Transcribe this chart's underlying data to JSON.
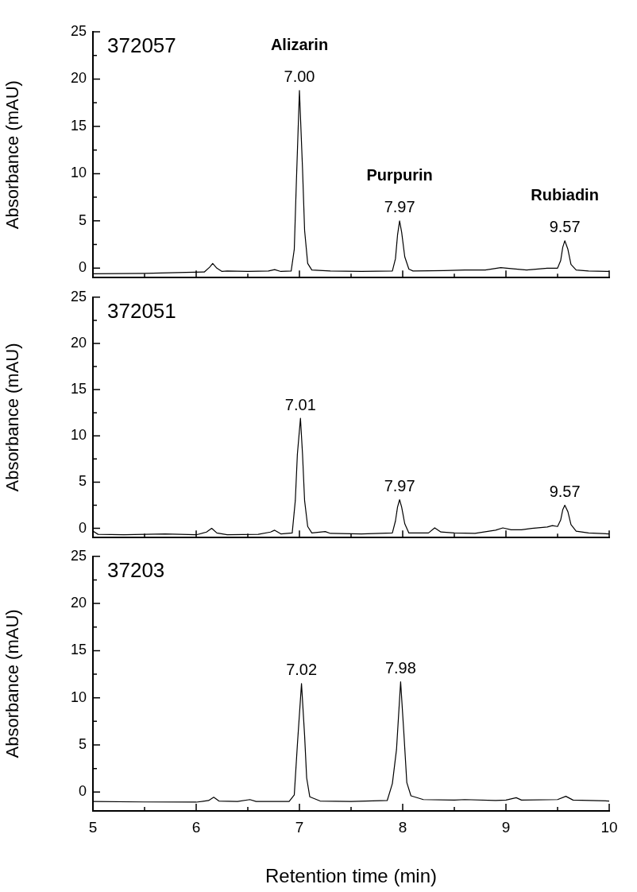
{
  "chart_data": [
    {
      "type": "line",
      "title": "372057",
      "ylabel": "Absorbance (mAU)",
      "tick_labels": "y",
      "xlim": [
        5,
        10
      ],
      "xticks": [
        5,
        {
          "value": 5.5,
          "label": null
        },
        6,
        {
          "value": 6.5,
          "label": null
        },
        7,
        {
          "value": 7.5,
          "label": null
        },
        8,
        {
          "value": 8.5,
          "label": null
        },
        9,
        {
          "value": 9.5,
          "label": null
        },
        10
      ],
      "ylim": [
        -1,
        25
      ],
      "yticks": [
        0,
        {
          "value": 2.5,
          "label": null
        },
        5,
        {
          "value": 7.5,
          "label": null
        },
        10,
        {
          "value": 12.5,
          "label": null
        },
        15,
        {
          "value": 17.5,
          "label": null
        },
        20,
        {
          "value": 22.5,
          "label": null
        },
        25
      ],
      "x": [
        5.0,
        5.5,
        5.9,
        6.08,
        6.13,
        6.16,
        6.2,
        6.25,
        6.3,
        6.5,
        6.7,
        6.76,
        6.82,
        6.92,
        6.95,
        6.97,
        7.0,
        7.03,
        7.05,
        7.08,
        7.12,
        7.3,
        7.6,
        7.9,
        7.93,
        7.95,
        7.97,
        7.99,
        8.02,
        8.06,
        8.1,
        8.4,
        8.6,
        8.8,
        8.95,
        9.05,
        9.2,
        9.4,
        9.5,
        9.53,
        9.55,
        9.57,
        9.6,
        9.63,
        9.68,
        9.8,
        10.0
      ],
      "series": [
        {
          "color": "#000000",
          "values": [
            -0.6,
            -0.55,
            -0.45,
            -0.4,
            0.1,
            0.5,
            0.0,
            -0.35,
            -0.3,
            -0.35,
            -0.3,
            -0.15,
            -0.35,
            -0.3,
            2.0,
            9.0,
            18.8,
            10.5,
            4.0,
            0.5,
            -0.2,
            -0.3,
            -0.35,
            -0.3,
            1.0,
            3.5,
            5.0,
            3.8,
            1.2,
            -0.1,
            -0.3,
            -0.25,
            -0.2,
            -0.2,
            0.05,
            -0.05,
            -0.2,
            0.0,
            0.0,
            0.8,
            2.2,
            2.9,
            2.0,
            0.4,
            -0.2,
            -0.3,
            -0.35
          ]
        }
      ],
      "annotations": [
        {
          "text": "7.00",
          "x": 7.0,
          "y": 18.8
        },
        {
          "text": "Alizarin",
          "x": 7.0,
          "y": 18.8
        },
        {
          "text": "7.97",
          "x": 7.97,
          "y": 5.0
        },
        {
          "text": "Purpurin",
          "x": 7.97,
          "y": 5.0
        },
        {
          "text": "9.57",
          "x": 9.57,
          "y": 2.9
        },
        {
          "text": "Rubiadin",
          "x": 9.57,
          "y": 2.9
        }
      ]
    },
    {
      "type": "line",
      "title": "372051",
      "ylabel": "Absorbance (mAU)",
      "tick_labels": "y",
      "xlim": [
        5,
        10
      ],
      "xticks": [
        5,
        {
          "value": 5.5,
          "label": null
        },
        6,
        {
          "value": 6.5,
          "label": null
        },
        7,
        {
          "value": 7.5,
          "label": null
        },
        8,
        {
          "value": 8.5,
          "label": null
        },
        9,
        {
          "value": 9.5,
          "label": null
        },
        10
      ],
      "ylim": [
        -1,
        25
      ],
      "yticks": [
        0,
        {
          "value": 2.5,
          "label": null
        },
        5,
        {
          "value": 7.5,
          "label": null
        },
        10,
        {
          "value": 12.5,
          "label": null
        },
        15,
        {
          "value": 17.5,
          "label": null
        },
        20,
        {
          "value": 22.5,
          "label": null
        },
        25
      ],
      "x": [
        5.0,
        5.05,
        5.3,
        5.7,
        6.0,
        6.1,
        6.15,
        6.2,
        6.3,
        6.6,
        6.72,
        6.76,
        6.82,
        6.93,
        6.96,
        6.98,
        7.01,
        7.03,
        7.05,
        7.08,
        7.12,
        7.25,
        7.3,
        7.6,
        7.9,
        7.93,
        7.95,
        7.97,
        7.99,
        8.02,
        8.06,
        8.25,
        8.31,
        8.37,
        8.5,
        8.7,
        8.9,
        8.97,
        9.05,
        9.15,
        9.25,
        9.4,
        9.45,
        9.5,
        9.53,
        9.55,
        9.57,
        9.6,
        9.63,
        9.68,
        9.8,
        10.0
      ],
      "series": [
        {
          "color": "#000000",
          "values": [
            -0.3,
            -0.65,
            -0.7,
            -0.6,
            -0.7,
            -0.4,
            0.0,
            -0.5,
            -0.7,
            -0.65,
            -0.4,
            -0.2,
            -0.6,
            -0.5,
            3.0,
            8.0,
            11.9,
            8.0,
            3.0,
            0.2,
            -0.5,
            -0.35,
            -0.55,
            -0.6,
            -0.5,
            0.8,
            2.3,
            3.1,
            2.3,
            0.5,
            -0.5,
            -0.5,
            0.05,
            -0.4,
            -0.5,
            -0.55,
            -0.2,
            0.05,
            -0.15,
            -0.15,
            0.0,
            0.15,
            0.3,
            0.2,
            0.9,
            2.0,
            2.5,
            1.8,
            0.4,
            -0.3,
            -0.5,
            -0.6
          ]
        }
      ],
      "annotations": [
        {
          "text": "7.01",
          "x": 7.01,
          "y": 11.9
        },
        {
          "text": "7.97",
          "x": 7.97,
          "y": 3.1
        },
        {
          "text": "9.57",
          "x": 9.57,
          "y": 2.5
        }
      ]
    },
    {
      "type": "line",
      "title": "37203",
      "xlabel": "Retention time (min)",
      "ylabel": "Absorbance (mAU)",
      "xlim": [
        5,
        10
      ],
      "xticks": [
        5,
        {
          "value": 5.5,
          "label": null
        },
        6,
        {
          "value": 6.5,
          "label": null
        },
        7,
        {
          "value": 7.5,
          "label": null
        },
        8,
        {
          "value": 8.5,
          "label": null
        },
        9,
        {
          "value": 9.5,
          "label": null
        },
        10
      ],
      "ylim": [
        -2,
        25
      ],
      "yticks": [
        0,
        {
          "value": 2.5,
          "label": null
        },
        5,
        {
          "value": 7.5,
          "label": null
        },
        10,
        {
          "value": 12.5,
          "label": null
        },
        15,
        {
          "value": 17.5,
          "label": null
        },
        20,
        {
          "value": 22.5,
          "label": null
        },
        25
      ],
      "x": [
        5.0,
        5.5,
        6.0,
        6.12,
        6.17,
        6.22,
        6.4,
        6.52,
        6.58,
        6.9,
        6.95,
        6.98,
        7.02,
        7.05,
        7.07,
        7.1,
        7.2,
        7.5,
        7.85,
        7.9,
        7.94,
        7.98,
        8.01,
        8.04,
        8.08,
        8.2,
        8.5,
        8.6,
        8.9,
        9.0,
        9.1,
        9.15,
        9.5,
        9.58,
        9.65,
        10.0
      ],
      "series": [
        {
          "color": "#000000",
          "values": [
            -1.0,
            -1.05,
            -1.07,
            -0.9,
            -0.55,
            -0.95,
            -1.0,
            -0.8,
            -1.0,
            -1.0,
            -0.3,
            5.0,
            11.5,
            6.0,
            1.5,
            -0.5,
            -0.95,
            -1.0,
            -0.9,
            0.9,
            4.5,
            11.7,
            6.5,
            1.0,
            -0.4,
            -0.8,
            -0.85,
            -0.8,
            -0.9,
            -0.85,
            -0.6,
            -0.85,
            -0.8,
            -0.45,
            -0.85,
            -0.95
          ]
        }
      ],
      "annotations": [
        {
          "text": "7.02",
          "x": 7.02,
          "y": 11.5
        },
        {
          "text": "7.98",
          "x": 7.98,
          "y": 11.7
        }
      ]
    }
  ]
}
